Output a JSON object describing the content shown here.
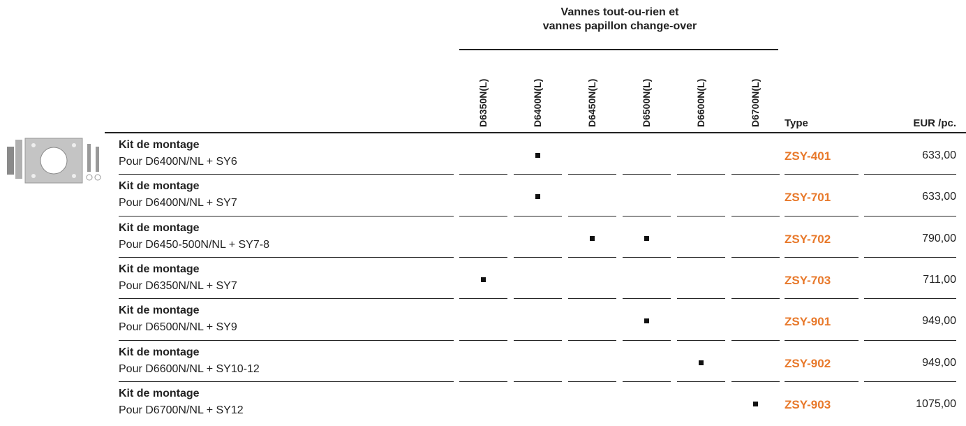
{
  "header": {
    "group_lines": [
      "Vannes tout-ou-rien et",
      "vannes papillon change-over"
    ],
    "columns": [
      "D6350N(L)",
      "D6400N(L)",
      "D6450N(L)",
      "D6500N(L)",
      "D6600N(L)",
      "D6700N(L)"
    ],
    "type": "Type",
    "price": "EUR /pc."
  },
  "rows": [
    {
      "title": "Kit de montage",
      "subtitle": "Pour D6400N/NL + SY6",
      "marks": [
        false,
        true,
        false,
        false,
        false,
        false
      ],
      "type": "ZSY-401",
      "price": "633,00"
    },
    {
      "title": "Kit de montage",
      "subtitle": "Pour D6400N/NL + SY7",
      "marks": [
        false,
        true,
        false,
        false,
        false,
        false
      ],
      "type": "ZSY-701",
      "price": "633,00"
    },
    {
      "title": "Kit de montage",
      "subtitle": "Pour D6450-500N/NL + SY7-8",
      "marks": [
        false,
        false,
        true,
        true,
        false,
        false
      ],
      "type": "ZSY-702",
      "price": "790,00"
    },
    {
      "title": "Kit de montage",
      "subtitle": "Pour D6350N/NL + SY7",
      "marks": [
        true,
        false,
        false,
        false,
        false,
        false
      ],
      "type": "ZSY-703",
      "price": "711,00"
    },
    {
      "title": "Kit de montage",
      "subtitle": "Pour D6500N/NL + SY9",
      "marks": [
        false,
        false,
        false,
        true,
        false,
        false
      ],
      "type": "ZSY-901",
      "price": "949,00"
    },
    {
      "title": "Kit de montage",
      "subtitle": "Pour D6600N/NL + SY10-12",
      "marks": [
        false,
        false,
        false,
        false,
        true,
        false
      ],
      "type": "ZSY-902",
      "price": "949,00"
    },
    {
      "title": "Kit de montage",
      "subtitle": "Pour D6700N/NL + SY12",
      "marks": [
        false,
        false,
        false,
        false,
        false,
        true
      ],
      "type": "ZSY-903",
      "price": "1075,00"
    }
  ]
}
